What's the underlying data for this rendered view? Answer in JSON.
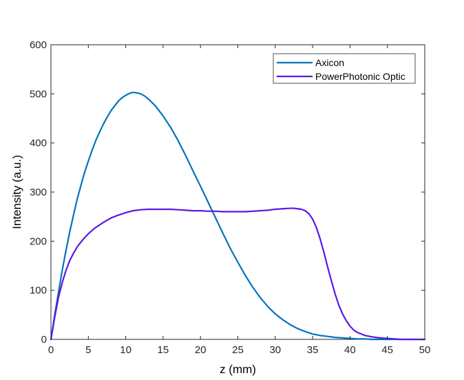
{
  "chart_data": {
    "type": "line",
    "title": "",
    "xlabel": "z (mm)",
    "ylabel": "Intensity (a.u.)",
    "xlim": [
      0,
      50
    ],
    "ylim": [
      0,
      600
    ],
    "xticks": [
      0,
      5,
      10,
      15,
      20,
      25,
      30,
      35,
      40,
      45,
      50
    ],
    "yticks": [
      0,
      100,
      200,
      300,
      400,
      500,
      600
    ],
    "grid": false,
    "legend_position": "top-right",
    "series": [
      {
        "name": "Axicon",
        "color": "#0072BD",
        "x": [
          0,
          0.5,
          1,
          1.5,
          2,
          2.5,
          3,
          3.5,
          4,
          4.5,
          5,
          5.5,
          6,
          6.5,
          7,
          7.5,
          8,
          8.5,
          9,
          9.5,
          10,
          10.5,
          11,
          11.5,
          12,
          12.5,
          13,
          14,
          15,
          16,
          17,
          18,
          19,
          20,
          21,
          22,
          23,
          24,
          25,
          26,
          27,
          28,
          29,
          30,
          31,
          32,
          33,
          34,
          35,
          36,
          37,
          38,
          39,
          40,
          41,
          42,
          43,
          44,
          45,
          46,
          47,
          48,
          49,
          50
        ],
        "y": [
          0,
          50,
          95,
          140,
          180,
          218,
          252,
          285,
          313,
          340,
          363,
          385,
          405,
          422,
          438,
          452,
          465,
          475,
          485,
          492,
          497,
          501,
          503,
          502,
          500,
          496,
          490,
          475,
          455,
          432,
          405,
          375,
          343,
          312,
          280,
          248,
          216,
          185,
          157,
          130,
          106,
          85,
          67,
          52,
          40,
          30,
          22,
          16,
          11,
          8,
          6,
          4,
          3,
          2,
          1,
          1,
          0,
          0,
          0,
          0,
          0,
          0,
          0,
          0
        ]
      },
      {
        "name": "PowerPhotonic Optic",
        "color": "#5B16E3",
        "x": [
          0,
          0.5,
          1,
          1.5,
          2,
          2.5,
          3,
          3.5,
          4,
          4.5,
          5,
          5.5,
          6,
          7,
          8,
          9,
          10,
          11,
          12,
          13,
          14,
          15,
          16,
          17,
          18,
          19,
          20,
          21,
          22,
          23,
          24,
          25,
          26,
          27,
          28,
          29,
          30,
          31,
          32,
          32.5,
          33,
          33.5,
          34,
          34.5,
          35,
          35.5,
          36,
          36.5,
          37,
          37.5,
          38,
          38.5,
          39,
          39.5,
          40,
          40.5,
          41,
          41.5,
          42,
          43,
          44,
          45,
          46,
          47,
          48,
          49,
          50
        ],
        "y": [
          0,
          45,
          85,
          115,
          140,
          160,
          175,
          188,
          198,
          207,
          215,
          222,
          228,
          238,
          247,
          253,
          258,
          262,
          264,
          265,
          265,
          265,
          265,
          264,
          263,
          262,
          262,
          261,
          261,
          260,
          260,
          260,
          260,
          261,
          262,
          263,
          265,
          266,
          267,
          267,
          266,
          265,
          262,
          256,
          245,
          228,
          205,
          178,
          148,
          120,
          93,
          70,
          52,
          38,
          27,
          19,
          14,
          11,
          8,
          5,
          3,
          2,
          1,
          0,
          0,
          0,
          0
        ]
      }
    ]
  }
}
